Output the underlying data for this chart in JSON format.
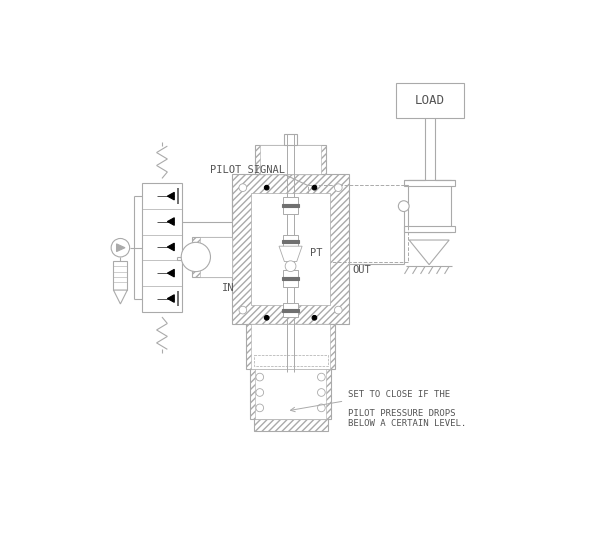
{
  "bg": "#ffffff",
  "lc": "#aaaaaa",
  "dc": "#555555",
  "tc": "#555555",
  "bc": "#000000",
  "label_load": "LOAD",
  "label_pilot": "PILOT SIGNAL",
  "label_in": "IN",
  "label_out": "OUT",
  "label_pt": "PT",
  "label_set1": "SET TO CLOSE IF THE",
  "label_set2": "PILOT PRESSURE DROPS",
  "label_set3": "BELOW A CERTAIN LEVEL."
}
